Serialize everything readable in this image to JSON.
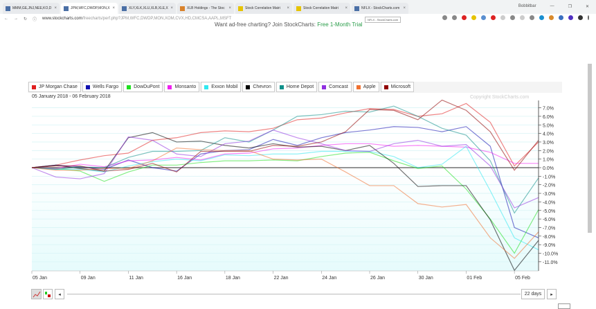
{
  "browser": {
    "tabs": [
      {
        "label": "MMM,GE,JNJ,NEE,KO,D"
      },
      {
        "label": "JPM,WFC,DWDP,MON,X"
      },
      {
        "label": "XLY,XLK,XLU,XLB,XLE,XLP"
      },
      {
        "label": "XLB Holdings - The Stoc"
      },
      {
        "label": "Stock Correlation Matri"
      },
      {
        "label": "Stock Correlation Matri"
      },
      {
        "label": "NFLX - StockCharts.com"
      }
    ],
    "profile": "Bobbitbar",
    "url_host": "www.stockcharts.com",
    "url_path": "/freecharts/perf.php?JPM,WFC,DWDP,MON,XOM,CVX,HD,CMCSA,AAPL,MSFT",
    "tooltip": "NFLX - StockCharts.com"
  },
  "banner": {
    "text": "Want ad-free charting? Join StockCharts: ",
    "link": "Free 1-Month Trial"
  },
  "date_range": "05 January 2018 - 06 February 2018",
  "copyright": "Copyright StockCharts.com",
  "navigator": {
    "period": "22 days"
  },
  "chart_data": {
    "type": "line",
    "ylabel": "% change",
    "ylim": [
      -12,
      7.5
    ],
    "yticks": [
      7,
      6,
      5,
      4,
      3,
      2,
      1,
      0,
      -1,
      -2,
      -3,
      -4,
      -5,
      -6,
      -7,
      -8,
      -9,
      -10,
      -11
    ],
    "x": [
      "05 Jan",
      "08 Jan",
      "09 Jan",
      "10 Jan",
      "11 Jan",
      "12 Jan",
      "16 Jan",
      "17 Jan",
      "18 Jan",
      "19 Jan",
      "22 Jan",
      "23 Jan",
      "24 Jan",
      "25 Jan",
      "26 Jan",
      "29 Jan",
      "30 Jan",
      "31 Jan",
      "01 Feb",
      "02 Feb",
      "05 Feb",
      "06 Feb"
    ],
    "xtick_labels": [
      "05 Jan",
      "09 Jan",
      "11 Jan",
      "16 Jan",
      "18 Jan",
      "22 Jan",
      "24 Jan",
      "26 Jan",
      "30 Jan",
      "01 Feb",
      "05 Feb"
    ],
    "legend": "top",
    "series": [
      {
        "name": "JP Morgan Chase",
        "color": "#e02020",
        "values": [
          0,
          0.3,
          0.9,
          1.4,
          1.7,
          3.2,
          3.5,
          4.1,
          4.3,
          4.2,
          4.6,
          5.6,
          5.8,
          6.4,
          6.9,
          6.8,
          6.0,
          6.3,
          7.5,
          5.3,
          0.2,
          3.0
        ]
      },
      {
        "name": "Wells Fargo",
        "color": "#1010b0",
        "values": [
          0,
          0.3,
          0.1,
          -0.2,
          0.9,
          0,
          -0.4,
          1.6,
          2.0,
          2.1,
          3.3,
          2.6,
          3.5,
          4.1,
          4.4,
          4.8,
          4.7,
          4.2,
          4.8,
          2.5,
          -7.0,
          -8.2
        ]
      },
      {
        "name": "DowDuPont",
        "color": "#20e020",
        "values": [
          0,
          -0.1,
          -0.4,
          -1.6,
          -0.5,
          0.3,
          0.3,
          0.6,
          0.8,
          0.8,
          0.9,
          0.8,
          1.3,
          1.7,
          1.8,
          0.8,
          -0.1,
          0.2,
          -2.5,
          -6.0,
          -10.0,
          -4.9
        ]
      },
      {
        "name": "Monsanto",
        "color": "#f020f0",
        "values": [
          0,
          -0.1,
          0.4,
          0.1,
          0.8,
          0.9,
          1.2,
          0.9,
          1.6,
          1.7,
          2.2,
          2.3,
          2.6,
          2.8,
          2.8,
          2.5,
          2.6,
          2.5,
          2.4,
          1.8,
          0.5,
          0.5
        ]
      },
      {
        "name": "Exxon Mobil",
        "color": "#30e8f0",
        "values": [
          0,
          -0.2,
          -0.2,
          -0.5,
          0.2,
          0.7,
          1.0,
          0.8,
          1.5,
          1.4,
          1.6,
          1.6,
          1.9,
          1.9,
          1.9,
          1.3,
          0.0,
          0.4,
          2.5,
          -2.7,
          -8.2,
          -9.6
        ]
      },
      {
        "name": "Chevron",
        "color": "#000000",
        "values": [
          0,
          0.3,
          -0.1,
          -0.4,
          3.5,
          4.1,
          3.0,
          3.1,
          2.6,
          2.3,
          2.8,
          2.4,
          2.5,
          2.0,
          2.6,
          0.5,
          -2.2,
          -2.1,
          -2.1,
          -6.1,
          -12.0,
          -8.5
        ]
      },
      {
        "name": "Home Depot",
        "color": "#10908a",
        "values": [
          0,
          -0.2,
          0.1,
          0.0,
          1.2,
          1.9,
          1.9,
          2.0,
          3.5,
          3.0,
          4.4,
          6.0,
          6.2,
          6.6,
          6.5,
          7.2,
          6.0,
          4.6,
          3.8,
          0.8,
          -5.3,
          -1.2
        ]
      },
      {
        "name": "Comcast",
        "color": "#9030e0",
        "values": [
          0,
          -1.1,
          -1.3,
          -0.7,
          3.6,
          3.2,
          1.6,
          1.3,
          2.8,
          3.1,
          4.4,
          3.5,
          2.8,
          2.0,
          1.9,
          2.8,
          3.2,
          2.5,
          2.7,
          0.2,
          -4.7,
          -3.5
        ]
      },
      {
        "name": "Apple",
        "color": "#f07030",
        "values": [
          0,
          -0.3,
          -0.3,
          -0.1,
          -0.1,
          0.8,
          2.3,
          2.1,
          2.0,
          2.0,
          1.0,
          0.9,
          1.0,
          -0.5,
          -2.1,
          -2.1,
          -4.2,
          -4.6,
          -4.3,
          -8.2,
          -10.6,
          -7.5
        ]
      },
      {
        "name": "Microsoft",
        "color": "#900000",
        "values": [
          0,
          0.2,
          0.2,
          -0.4,
          -0.2,
          0.5,
          -0.5,
          1.9,
          1.9,
          1.9,
          2.6,
          2.5,
          3.0,
          4.2,
          6.8,
          6.7,
          5.6,
          7.9,
          6.7,
          4.2,
          -0.3,
          3.2
        ]
      }
    ]
  }
}
